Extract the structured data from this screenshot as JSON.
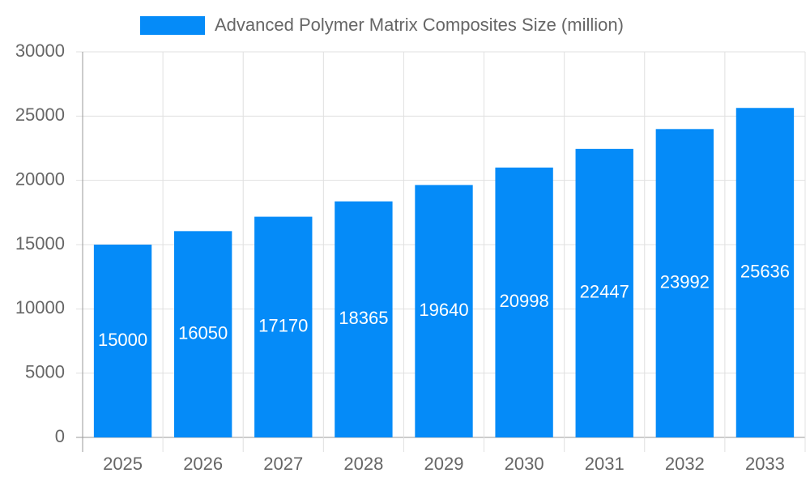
{
  "chart_data": {
    "type": "bar",
    "categories": [
      "2025",
      "2026",
      "2027",
      "2028",
      "2029",
      "2030",
      "2031",
      "2032",
      "2033"
    ],
    "series": [
      {
        "name": "Advanced Polymer Matrix Composites Size (million)",
        "color": "#058bf8",
        "values": [
          15000,
          16050,
          17170,
          18365,
          19640,
          20998,
          22447,
          23992,
          25636
        ]
      }
    ],
    "ylim": [
      0,
      30000
    ],
    "yticks": [
      0,
      5000,
      10000,
      15000,
      20000,
      25000,
      30000
    ],
    "grid": true,
    "legend": "top",
    "data_labels": true
  }
}
